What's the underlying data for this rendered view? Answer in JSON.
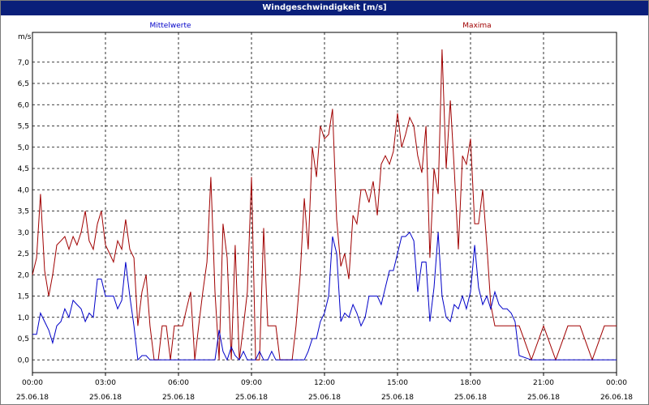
{
  "window": {
    "title": "Windgeschwindigkeit [m/s]"
  },
  "chart_data": {
    "type": "line",
    "title": "Windgeschwindigkeit [m/s]",
    "ylabel": "m/s",
    "ylim": [
      -0.3,
      7.7
    ],
    "xlim": [
      0,
      24
    ],
    "grid": true,
    "yticks": [
      {
        "v": 0.0,
        "label": "0,0"
      },
      {
        "v": 0.5,
        "label": "0,5"
      },
      {
        "v": 1.0,
        "label": "1,0"
      },
      {
        "v": 1.5,
        "label": "1,5"
      },
      {
        "v": 2.0,
        "label": "2,0"
      },
      {
        "v": 2.5,
        "label": "2,5"
      },
      {
        "v": 3.0,
        "label": "3,0"
      },
      {
        "v": 3.5,
        "label": "3,5"
      },
      {
        "v": 4.0,
        "label": "4,0"
      },
      {
        "v": 4.5,
        "label": "4,5"
      },
      {
        "v": 5.0,
        "label": "5,0"
      },
      {
        "v": 5.5,
        "label": "5,5"
      },
      {
        "v": 6.0,
        "label": "6,0"
      },
      {
        "v": 6.5,
        "label": "6,5"
      },
      {
        "v": 7.0,
        "label": "7,0"
      }
    ],
    "xticks": [
      {
        "h": 0,
        "time": "00:00",
        "date": "25.06.18"
      },
      {
        "h": 3,
        "time": "03:00",
        "date": "25.06.18"
      },
      {
        "h": 6,
        "time": "06:00",
        "date": "25.06.18"
      },
      {
        "h": 9,
        "time": "09:00",
        "date": "25.06.18"
      },
      {
        "h": 12,
        "time": "12:00",
        "date": "25.06.18"
      },
      {
        "h": 15,
        "time": "15:00",
        "date": "25.06.18"
      },
      {
        "h": 18,
        "time": "18:00",
        "date": "25.06.18"
      },
      {
        "h": 21,
        "time": "21:00",
        "date": "25.06.18"
      },
      {
        "h": 24,
        "time": "00:00",
        "date": "26.06.18"
      }
    ],
    "series": [
      {
        "name": "Mittelwerte",
        "color": "#0000c8",
        "x": [
          0,
          0.17,
          0.33,
          0.5,
          0.67,
          0.83,
          1.0,
          1.17,
          1.33,
          1.5,
          1.67,
          1.83,
          2.0,
          2.17,
          2.33,
          2.5,
          2.67,
          2.83,
          3.0,
          3.17,
          3.33,
          3.5,
          3.67,
          3.83,
          4.0,
          4.17,
          4.33,
          4.5,
          4.67,
          4.83,
          5.0,
          5.17,
          5.33,
          5.5,
          5.67,
          5.83,
          6.0,
          6.17,
          6.33,
          6.5,
          6.67,
          6.83,
          7.0,
          7.17,
          7.33,
          7.5,
          7.67,
          7.83,
          8.0,
          8.17,
          8.33,
          8.5,
          8.67,
          8.83,
          9.0,
          9.17,
          9.33,
          9.5,
          9.67,
          9.83,
          10.0,
          10.17,
          10.33,
          10.5,
          10.67,
          10.83,
          11.0,
          11.17,
          11.33,
          11.5,
          11.67,
          11.83,
          12.0,
          12.17,
          12.33,
          12.5,
          12.67,
          12.83,
          13.0,
          13.17,
          13.33,
          13.5,
          13.67,
          13.83,
          14.0,
          14.17,
          14.33,
          14.5,
          14.67,
          14.83,
          15.0,
          15.17,
          15.33,
          15.5,
          15.67,
          15.83,
          16.0,
          16.17,
          16.33,
          16.5,
          16.67,
          16.83,
          17.0,
          17.17,
          17.33,
          17.5,
          17.67,
          17.83,
          18.0,
          18.17,
          18.33,
          18.5,
          18.67,
          18.83,
          19.0,
          19.17,
          19.33,
          19.5,
          19.67,
          19.83,
          20.0,
          20.5,
          21.0,
          21.5,
          22.0,
          22.5,
          23.0,
          23.5,
          24.0
        ],
        "y": [
          0.6,
          0.6,
          1.1,
          0.9,
          0.7,
          0.4,
          0.8,
          0.9,
          1.2,
          1.0,
          1.4,
          1.3,
          1.2,
          0.9,
          1.1,
          1.0,
          1.9,
          1.9,
          1.5,
          1.5,
          1.5,
          1.2,
          1.4,
          2.3,
          1.5,
          0.8,
          0.0,
          0.1,
          0.1,
          0.0,
          0.0,
          0.0,
          0.0,
          0.0,
          0.0,
          0.0,
          0.0,
          0.0,
          0.0,
          0.0,
          0.0,
          0.0,
          0.0,
          0.0,
          0.0,
          0.0,
          0.7,
          0.2,
          0.0,
          0.3,
          0.1,
          0.0,
          0.2,
          0.0,
          0.0,
          0.0,
          0.2,
          0.0,
          0.0,
          0.2,
          0.0,
          0.0,
          0.0,
          0.0,
          0.0,
          0.0,
          0.0,
          0.0,
          0.2,
          0.5,
          0.5,
          0.9,
          1.1,
          1.5,
          2.9,
          2.5,
          0.9,
          1.1,
          1.0,
          1.3,
          1.1,
          0.8,
          1.0,
          1.5,
          1.5,
          1.5,
          1.3,
          1.7,
          2.1,
          2.1,
          2.5,
          2.9,
          2.9,
          3.0,
          2.8,
          1.6,
          2.3,
          2.3,
          0.9,
          1.7,
          3.0,
          1.5,
          1.0,
          0.9,
          1.3,
          1.2,
          1.5,
          1.2,
          1.6,
          2.7,
          1.7,
          1.3,
          1.5,
          1.2,
          1.6,
          1.3,
          1.2,
          1.2,
          1.1,
          0.9,
          0.1,
          0.0,
          0.0,
          0.0,
          0.0,
          0.0,
          0.0,
          0.0,
          0.0
        ]
      },
      {
        "name": "Maxima",
        "color": "#a00000",
        "x": [
          0,
          0.17,
          0.33,
          0.5,
          0.67,
          0.83,
          1.0,
          1.17,
          1.33,
          1.5,
          1.67,
          1.83,
          2.0,
          2.17,
          2.33,
          2.5,
          2.67,
          2.83,
          3.0,
          3.17,
          3.33,
          3.5,
          3.67,
          3.83,
          4.0,
          4.17,
          4.33,
          4.5,
          4.67,
          4.83,
          5.0,
          5.17,
          5.33,
          5.5,
          5.67,
          5.83,
          6.0,
          6.17,
          6.33,
          6.5,
          6.67,
          6.83,
          7.0,
          7.17,
          7.33,
          7.5,
          7.67,
          7.83,
          8.0,
          8.17,
          8.33,
          8.5,
          8.67,
          8.83,
          9.0,
          9.17,
          9.33,
          9.5,
          9.67,
          9.83,
          10.0,
          10.17,
          10.33,
          10.5,
          10.67,
          10.83,
          11.0,
          11.17,
          11.33,
          11.5,
          11.67,
          11.83,
          12.0,
          12.17,
          12.33,
          12.5,
          12.67,
          12.83,
          13.0,
          13.17,
          13.33,
          13.5,
          13.67,
          13.83,
          14.0,
          14.17,
          14.33,
          14.5,
          14.67,
          14.83,
          15.0,
          15.17,
          15.33,
          15.5,
          15.67,
          15.83,
          16.0,
          16.17,
          16.33,
          16.5,
          16.67,
          16.83,
          17.0,
          17.17,
          17.33,
          17.5,
          17.67,
          17.83,
          18.0,
          18.17,
          18.33,
          18.5,
          18.67,
          18.83,
          19.0,
          19.17,
          19.33,
          19.5,
          19.67,
          19.83,
          20.0,
          20.5,
          21.0,
          21.5,
          22.0,
          22.5,
          23.0,
          23.5,
          24.0
        ],
        "y": [
          2.0,
          2.4,
          3.9,
          2.1,
          1.5,
          2.0,
          2.7,
          2.8,
          2.9,
          2.6,
          2.9,
          2.7,
          3.0,
          3.5,
          2.8,
          2.6,
          3.2,
          3.5,
          2.7,
          2.5,
          2.3,
          2.8,
          2.6,
          3.3,
          2.6,
          2.4,
          0.8,
          1.6,
          2.0,
          0.8,
          0.0,
          0.0,
          0.8,
          0.8,
          0.0,
          0.8,
          0.8,
          0.8,
          1.2,
          1.6,
          0.0,
          0.8,
          1.6,
          2.3,
          4.3,
          1.6,
          0.0,
          3.2,
          2.4,
          0.0,
          2.7,
          0.0,
          0.8,
          1.6,
          4.3,
          0.0,
          0.0,
          3.1,
          0.8,
          0.8,
          0.8,
          0.0,
          0.0,
          0.0,
          0.0,
          0.8,
          2.0,
          3.8,
          2.6,
          5.0,
          4.3,
          5.5,
          5.2,
          5.3,
          5.9,
          3.3,
          2.2,
          2.5,
          1.9,
          3.4,
          3.2,
          4.0,
          4.0,
          3.7,
          4.2,
          3.4,
          4.6,
          4.8,
          4.6,
          4.9,
          5.8,
          5.0,
          5.3,
          5.7,
          5.5,
          4.8,
          4.4,
          5.5,
          2.4,
          4.5,
          3.9,
          7.3,
          4.5,
          6.1,
          4.5,
          2.6,
          4.8,
          4.6,
          5.2,
          3.2,
          3.2,
          4.0,
          2.7,
          1.3,
          0.8,
          0.8,
          0.8,
          0.8,
          0.8,
          0.8,
          0.8,
          0.0,
          0.8,
          0.0,
          0.8,
          0.8,
          0.0,
          0.8,
          0.8
        ]
      }
    ]
  }
}
